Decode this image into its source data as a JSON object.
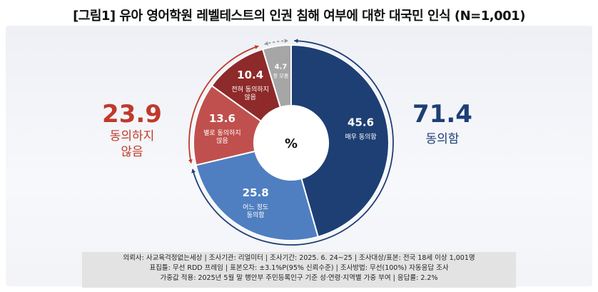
{
  "title": "[그림1] 유아 영어학원 레벨테스트의 인권 침해 여부에 대한 대국민 인식 (N=1,001)",
  "center_label": "%",
  "summary": {
    "agree": {
      "value": "71.4",
      "label": "동의함"
    },
    "disagree": {
      "value": "23.9",
      "label_line1": "동의하지",
      "label_line2": "않음"
    }
  },
  "chart_data": {
    "type": "pie",
    "donut": true,
    "slices": [
      {
        "name_lines": [
          "매우 동의함"
        ],
        "value": 45.6,
        "color": "#1e3f73"
      },
      {
        "name_lines": [
          "어느 정도",
          "동의함"
        ],
        "value": 25.8,
        "color": "#4f7fc0"
      },
      {
        "name_lines": [
          "별로 동의하지",
          "않음"
        ],
        "value": 13.6,
        "color": "#c0504d"
      },
      {
        "name_lines": [
          "전혀 동의하지",
          "않음"
        ],
        "value": 10.4,
        "color": "#8e2a2a"
      },
      {
        "name_lines": [
          "잘 모름"
        ],
        "value": 4.7,
        "color": "#a6a6a6"
      }
    ]
  },
  "footer": {
    "line1": "의뢰사: 사교육걱정없는세상 | 조사기관: 리얼미터 | 조사기간: 2025. 6. 24~25 | 조사대상/표본: 전국 18세 이상 1,001명",
    "line2": "표집틀: 무선 RDD 프레임 | 표본오차: ±3.1%P(95% 신뢰수준) | 조사방법: 무선(100%) 자동응답 조사",
    "line3": "가중값 적용: 2025년 5월 말 행안부 주민등록인구 기준 성·연령·지역별 가중 부여 | 응답률: 2.2%"
  },
  "colors": {
    "agree": "#1e3f73",
    "disagree": "#c0392b"
  }
}
